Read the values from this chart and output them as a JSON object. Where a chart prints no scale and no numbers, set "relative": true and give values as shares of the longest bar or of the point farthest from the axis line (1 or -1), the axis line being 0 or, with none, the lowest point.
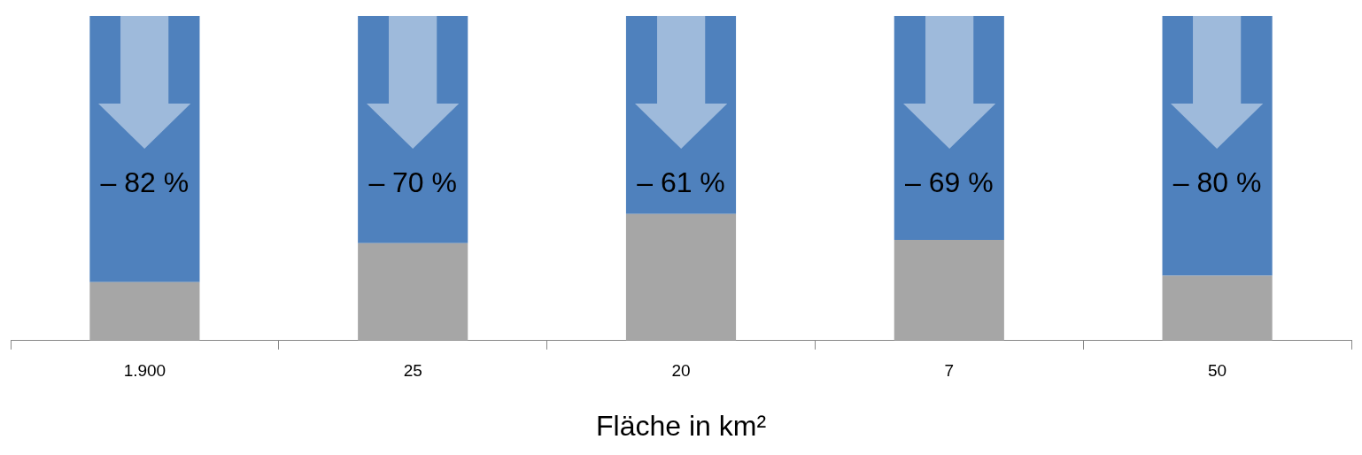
{
  "chart_data": {
    "type": "bar",
    "stacked": true,
    "relative": true,
    "xlabel": "Fläche in km²",
    "categories": [
      "1.900",
      "25",
      "20",
      "7",
      "50"
    ],
    "series": [
      {
        "color": "#a6a6a6",
        "values": [
          0.18,
          0.3,
          0.39,
          0.31,
          0.2
        ]
      },
      {
        "color": "#4f81bd",
        "values": [
          0.82,
          0.7,
          0.61,
          0.69,
          0.8
        ]
      }
    ],
    "annotations": [
      "– 82 %",
      "– 70 %",
      "– 61 %",
      "– 69 %",
      "– 80 %"
    ]
  }
}
